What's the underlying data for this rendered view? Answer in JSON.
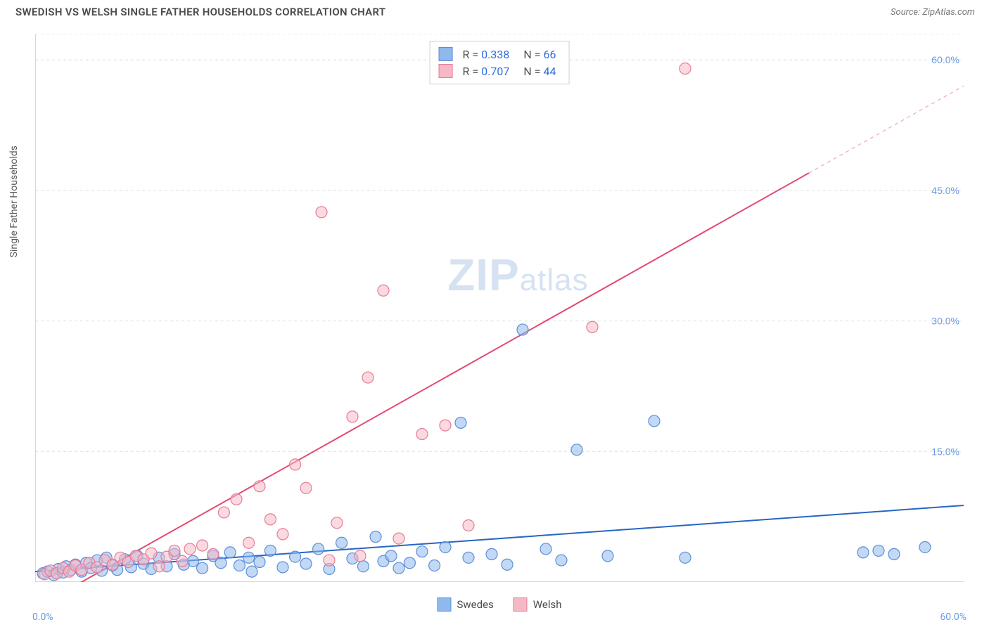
{
  "title": "SWEDISH VS WELSH SINGLE FATHER HOUSEHOLDS CORRELATION CHART",
  "source": "Source: ZipAtlas.com",
  "watermark": {
    "zip": "ZIP",
    "atlas": "atlas"
  },
  "y_axis_label": "Single Father Households",
  "chart": {
    "type": "scatter",
    "xlim": [
      0,
      60
    ],
    "ylim": [
      0,
      63
    ],
    "x_tick_labels": {
      "start": "0.0%",
      "end": "60.0%"
    },
    "y_tick_labels": [
      "15.0%",
      "30.0%",
      "45.0%",
      "60.0%"
    ],
    "y_tick_values": [
      15,
      30,
      45,
      60
    ],
    "x_minor_ticks": [
      6,
      12,
      18,
      24,
      30,
      36,
      42,
      48,
      54
    ],
    "grid_color": "#dedede",
    "axis_color": "#cccccc",
    "background_color": "#ffffff",
    "point_radius": 8,
    "point_opacity": 0.55,
    "line_width": 2
  },
  "series": [
    {
      "name": "Swedes",
      "fill_color": "#8fb8ec",
      "stroke_color": "#5a8fd8",
      "line_color": "#2766c4",
      "regression": {
        "x1": 0,
        "y1": 1.2,
        "x2": 60,
        "y2": 8.8
      },
      "R": "0.338",
      "N": "66",
      "points": [
        [
          0.5,
          1.0
        ],
        [
          0.8,
          1.2
        ],
        [
          1.2,
          0.8
        ],
        [
          1.5,
          1.5
        ],
        [
          1.8,
          1.1
        ],
        [
          2.0,
          1.8
        ],
        [
          2.3,
          1.4
        ],
        [
          2.6,
          2.0
        ],
        [
          3.0,
          1.2
        ],
        [
          3.3,
          2.2
        ],
        [
          3.6,
          1.6
        ],
        [
          4.0,
          2.5
        ],
        [
          4.3,
          1.3
        ],
        [
          4.6,
          2.8
        ],
        [
          5.0,
          1.9
        ],
        [
          5.3,
          1.4
        ],
        [
          5.8,
          2.6
        ],
        [
          6.2,
          1.7
        ],
        [
          6.6,
          3.0
        ],
        [
          7.0,
          2.1
        ],
        [
          7.5,
          1.5
        ],
        [
          8.0,
          2.8
        ],
        [
          8.5,
          1.8
        ],
        [
          9.0,
          3.2
        ],
        [
          9.6,
          2.0
        ],
        [
          10.2,
          2.4
        ],
        [
          10.8,
          1.6
        ],
        [
          11.5,
          3.0
        ],
        [
          12.0,
          2.2
        ],
        [
          12.6,
          3.4
        ],
        [
          13.2,
          1.9
        ],
        [
          13.8,
          2.8
        ],
        [
          14.5,
          2.3
        ],
        [
          15.2,
          3.6
        ],
        [
          16.0,
          1.7
        ],
        [
          16.8,
          2.9
        ],
        [
          17.5,
          2.1
        ],
        [
          18.3,
          3.8
        ],
        [
          19.0,
          1.5
        ],
        [
          19.8,
          4.5
        ],
        [
          20.5,
          2.7
        ],
        [
          21.2,
          1.8
        ],
        [
          22.0,
          5.2
        ],
        [
          22.5,
          2.4
        ],
        [
          23.0,
          3.0
        ],
        [
          23.5,
          1.6
        ],
        [
          24.2,
          2.2
        ],
        [
          25.0,
          3.5
        ],
        [
          25.8,
          1.9
        ],
        [
          26.5,
          4.0
        ],
        [
          27.5,
          18.3
        ],
        [
          28.0,
          2.8
        ],
        [
          29.5,
          3.2
        ],
        [
          30.5,
          2.0
        ],
        [
          31.5,
          29.0
        ],
        [
          33.0,
          3.8
        ],
        [
          34.0,
          2.5
        ],
        [
          35.0,
          15.2
        ],
        [
          37.0,
          3.0
        ],
        [
          40.0,
          18.5
        ],
        [
          42.0,
          2.8
        ],
        [
          53.5,
          3.4
        ],
        [
          54.5,
          3.6
        ],
        [
          55.5,
          3.2
        ],
        [
          57.5,
          4.0
        ],
        [
          14.0,
          1.2
        ]
      ]
    },
    {
      "name": "Welsh",
      "fill_color": "#f5b9c6",
      "stroke_color": "#e87b95",
      "line_color": "#e34b72",
      "regression": {
        "x1": 0,
        "y1": -3,
        "x2": 60,
        "y2": 57
      },
      "R": "0.707",
      "N": "44",
      "points": [
        [
          0.6,
          0.9
        ],
        [
          1.0,
          1.3
        ],
        [
          1.4,
          1.0
        ],
        [
          1.8,
          1.6
        ],
        [
          2.2,
          1.2
        ],
        [
          2.6,
          1.9
        ],
        [
          3.0,
          1.4
        ],
        [
          3.5,
          2.2
        ],
        [
          4.0,
          1.7
        ],
        [
          4.5,
          2.5
        ],
        [
          5.0,
          2.0
        ],
        [
          5.5,
          2.8
        ],
        [
          6.0,
          2.3
        ],
        [
          6.5,
          3.0
        ],
        [
          7.0,
          2.6
        ],
        [
          7.5,
          3.3
        ],
        [
          8.0,
          1.8
        ],
        [
          8.5,
          2.9
        ],
        [
          9.0,
          3.6
        ],
        [
          9.5,
          2.4
        ],
        [
          10.0,
          3.8
        ],
        [
          10.8,
          4.2
        ],
        [
          11.5,
          3.2
        ],
        [
          12.2,
          8.0
        ],
        [
          13.0,
          9.5
        ],
        [
          13.8,
          4.5
        ],
        [
          14.5,
          11.0
        ],
        [
          15.2,
          7.2
        ],
        [
          16.0,
          5.5
        ],
        [
          16.8,
          13.5
        ],
        [
          17.5,
          10.8
        ],
        [
          18.5,
          42.5
        ],
        [
          19.5,
          6.8
        ],
        [
          20.5,
          19.0
        ],
        [
          21.5,
          23.5
        ],
        [
          22.5,
          33.5
        ],
        [
          23.5,
          5.0
        ],
        [
          25.0,
          17.0
        ],
        [
          26.5,
          18.0
        ],
        [
          28.0,
          6.5
        ],
        [
          36.0,
          29.3
        ],
        [
          42.0,
          59.0
        ],
        [
          19.0,
          2.5
        ],
        [
          21.0,
          3.0
        ]
      ]
    }
  ],
  "corr_legend": {
    "r_label": "R =",
    "n_label": "N ="
  }
}
